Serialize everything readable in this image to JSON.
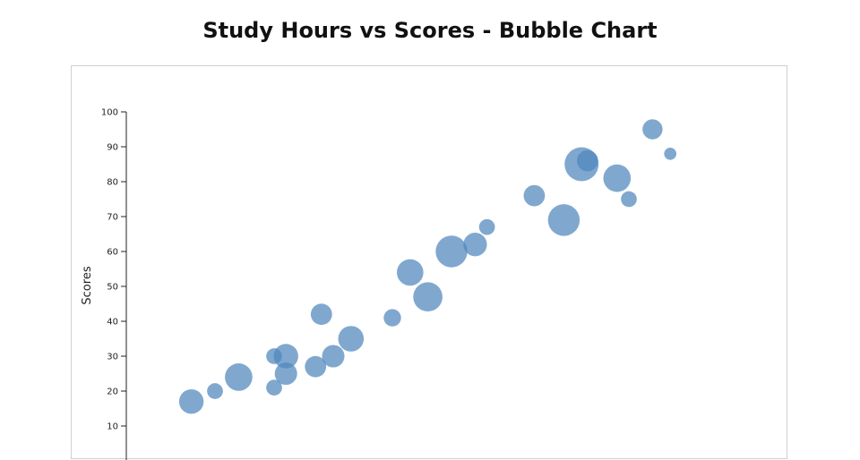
{
  "title": "Study Hours vs Scores - Bubble Chart",
  "colors": {
    "bubble": "#4f86bd",
    "axis": "#222222",
    "frame": "#d0d0d0"
  },
  "chart_data": {
    "type": "scatter",
    "title": "Study Hours vs Scores - Bubble Chart",
    "ylabel": "Scores",
    "xlabel": "",
    "ylim": [
      0,
      100
    ],
    "yticks": [
      10,
      20,
      30,
      40,
      50,
      60,
      70,
      80,
      90,
      100
    ],
    "xlim": [
      0,
      10
    ],
    "grid": false,
    "series": [
      {
        "points": [
          {
            "x": 1.1,
            "y": 17,
            "size": 60
          },
          {
            "x": 1.5,
            "y": 20,
            "size": 25
          },
          {
            "x": 1.9,
            "y": 24,
            "size": 75
          },
          {
            "x": 2.5,
            "y": 21,
            "size": 25
          },
          {
            "x": 2.5,
            "y": 30,
            "size": 25
          },
          {
            "x": 2.7,
            "y": 30,
            "size": 60
          },
          {
            "x": 2.7,
            "y": 25,
            "size": 50
          },
          {
            "x": 3.2,
            "y": 27,
            "size": 45
          },
          {
            "x": 3.3,
            "y": 42,
            "size": 45
          },
          {
            "x": 3.5,
            "y": 30,
            "size": 50
          },
          {
            "x": 3.8,
            "y": 35,
            "size": 65
          },
          {
            "x": 4.5,
            "y": 41,
            "size": 30
          },
          {
            "x": 4.8,
            "y": 54,
            "size": 70
          },
          {
            "x": 5.1,
            "y": 47,
            "size": 85
          },
          {
            "x": 5.5,
            "y": 60,
            "size": 100
          },
          {
            "x": 5.9,
            "y": 62,
            "size": 55
          },
          {
            "x": 6.1,
            "y": 67,
            "size": 25
          },
          {
            "x": 6.9,
            "y": 76,
            "size": 45
          },
          {
            "x": 7.4,
            "y": 69,
            "size": 100
          },
          {
            "x": 7.7,
            "y": 85,
            "size": 115
          },
          {
            "x": 7.8,
            "y": 86,
            "size": 45
          },
          {
            "x": 8.3,
            "y": 81,
            "size": 75
          },
          {
            "x": 8.5,
            "y": 75,
            "size": 25
          },
          {
            "x": 8.9,
            "y": 95,
            "size": 40
          },
          {
            "x": 9.2,
            "y": 88,
            "size": 15
          }
        ]
      }
    ]
  }
}
